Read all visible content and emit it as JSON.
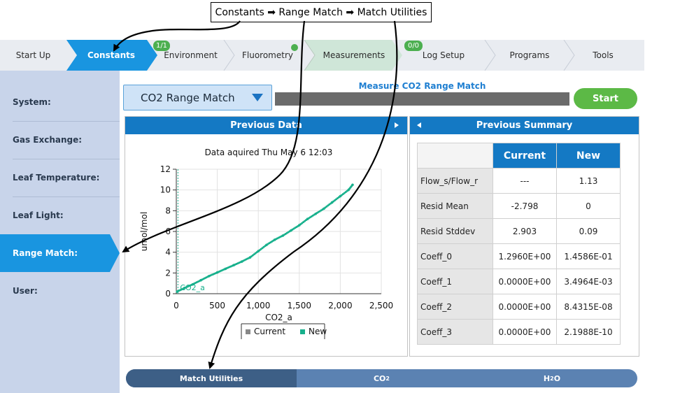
{
  "annotation": {
    "callout": "Constants ➡ Range Match ➡ Match Utilities"
  },
  "nav": {
    "tabs": [
      {
        "label": "Start Up"
      },
      {
        "label": "Constants",
        "active": true
      },
      {
        "label": "Environment",
        "badge": "1/1"
      },
      {
        "label": "Fluorometry",
        "status_dot": true
      },
      {
        "label": "Measurements",
        "highlighted": true
      },
      {
        "label": "Log Setup",
        "badge": "0/0"
      },
      {
        "label": "Programs"
      },
      {
        "label": "Tools"
      }
    ]
  },
  "sidebar": {
    "items": [
      {
        "label": "System:"
      },
      {
        "label": "Gas Exchange:"
      },
      {
        "label": "Leaf Temperature:"
      },
      {
        "label": "Leaf Light:"
      },
      {
        "label": "Range Match:",
        "active": true
      },
      {
        "label": "User:"
      }
    ]
  },
  "main": {
    "dropdown_value": "CO2 Range Match",
    "measure_title": "Measure CO2 Range Match",
    "start_label": "Start",
    "previous_data_title": "Previous Data",
    "previous_summary_title": "Previous Summary"
  },
  "chart_data": {
    "type": "scatter",
    "title": "Data aquired Thu May  6 12:03",
    "xlabel": "CO2_a",
    "ylabel": "umol/mol",
    "xlim": [
      0,
      2500
    ],
    "ylim": [
      0,
      12
    ],
    "x_ticks": [
      "0",
      "500",
      "1,000",
      "1,500",
      "2,000",
      "2,500"
    ],
    "y_ticks": [
      "0",
      "2",
      "4",
      "6",
      "8",
      "10",
      "12"
    ],
    "grid": true,
    "legend": [
      {
        "name": "Current",
        "color": "#888888"
      },
      {
        "name": "New",
        "color": "#17b08c"
      }
    ],
    "legend_position": "bottom",
    "annotation": "CO2_a",
    "series": [
      {
        "name": "New",
        "color": "#17b08c",
        "x": [
          10,
          100,
          200,
          300,
          400,
          500,
          600,
          700,
          800,
          900,
          1000,
          1100,
          1200,
          1300,
          1400,
          1500,
          1600,
          1700,
          1800,
          1900,
          2000,
          2100,
          2150
        ],
        "y": [
          0.2,
          0.55,
          0.9,
          1.3,
          1.7,
          2.05,
          2.4,
          2.75,
          3.1,
          3.5,
          4.1,
          4.7,
          5.2,
          5.6,
          6.1,
          6.6,
          7.2,
          7.7,
          8.2,
          8.8,
          9.4,
          10.0,
          10.5
        ]
      }
    ]
  },
  "summary_table": {
    "headers": [
      "Current",
      "New"
    ],
    "rows": [
      {
        "label": "Flow_s/Flow_r",
        "current": "---",
        "new": "1.13"
      },
      {
        "label": "Resid Mean",
        "current": "-2.798",
        "new": "0"
      },
      {
        "label": "Resid Stddev",
        "current": "2.903",
        "new": "0.09"
      },
      {
        "label": "Coeff_0",
        "current": "1.2960E+00",
        "new": "1.4586E-01"
      },
      {
        "label": "Coeff_1",
        "current": "0.0000E+00",
        "new": "3.4964E-03"
      },
      {
        "label": "Coeff_2",
        "current": "0.0000E+00",
        "new": "8.4315E-08"
      },
      {
        "label": "Coeff_3",
        "current": "0.0000E+00",
        "new": "2.1988E-10"
      }
    ]
  },
  "bottom_tabs": [
    {
      "label": "Match Utilities",
      "active": true
    },
    {
      "label": "CO",
      "sub": "2"
    },
    {
      "label": "H",
      "sub": "2",
      "suffix": "O"
    }
  ],
  "colors": {
    "accent": "#1479c4",
    "active_tab": "#1995e0",
    "start": "#5cb946",
    "series_new": "#17b08c"
  }
}
